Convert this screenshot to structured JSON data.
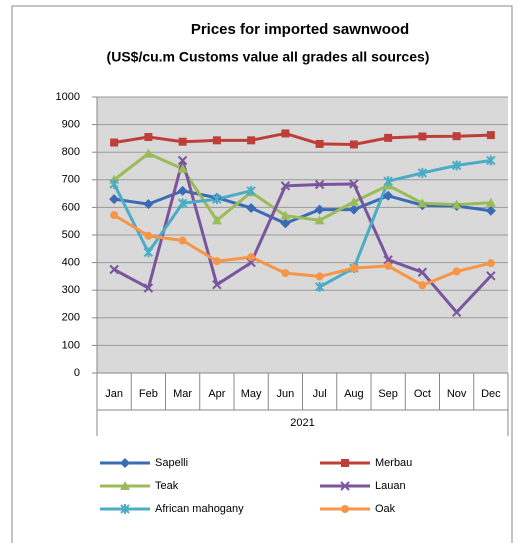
{
  "chart_data": {
    "type": "line",
    "title": "Prices for imported sawnwood",
    "subtitle": "(US$/cu.m Customs value all grades all sources)",
    "categories": [
      "Jan",
      "Feb",
      "Mar",
      "Apr",
      "May",
      "Jun",
      "Jul",
      "Aug",
      "Sep",
      "Oct",
      "Nov",
      "Dec"
    ],
    "xlabel": "2021",
    "ylim": [
      0,
      1000
    ],
    "yticks": [
      0,
      100,
      200,
      300,
      400,
      500,
      600,
      700,
      800,
      900,
      1000
    ],
    "grid": true,
    "legend": "bottom",
    "series": [
      {
        "name": "Sapelli",
        "color": "#3a6bb5",
        "marker": "diamond",
        "values": [
          630,
          612,
          660,
          635,
          598,
          542,
          592,
          592,
          642,
          608,
          605,
          588
        ]
      },
      {
        "name": "Merbau",
        "color": "#be3f3a",
        "marker": "square",
        "values": [
          835,
          855,
          838,
          843,
          843,
          868,
          830,
          828,
          852,
          857,
          858,
          862
        ]
      },
      {
        "name": "Teak",
        "color": "#9bbb59",
        "marker": "triangle",
        "values": [
          700,
          795,
          740,
          553,
          655,
          570,
          553,
          620,
          680,
          615,
          610,
          617
        ]
      },
      {
        "name": "Lauan",
        "color": "#7a559e",
        "marker": "x",
        "values": [
          375,
          308,
          770,
          320,
          400,
          678,
          683,
          685,
          410,
          365,
          220,
          352
        ]
      },
      {
        "name": "African mahogany",
        "color": "#4bacc6",
        "marker": "star",
        "values": [
          685,
          437,
          615,
          630,
          660,
          null,
          312,
          380,
          695,
          725,
          752,
          770
        ]
      },
      {
        "name": "Oak",
        "color": "#f79646",
        "marker": "circle",
        "values": [
          572,
          497,
          480,
          405,
          420,
          362,
          350,
          380,
          388,
          318,
          368,
          398
        ]
      }
    ]
  }
}
